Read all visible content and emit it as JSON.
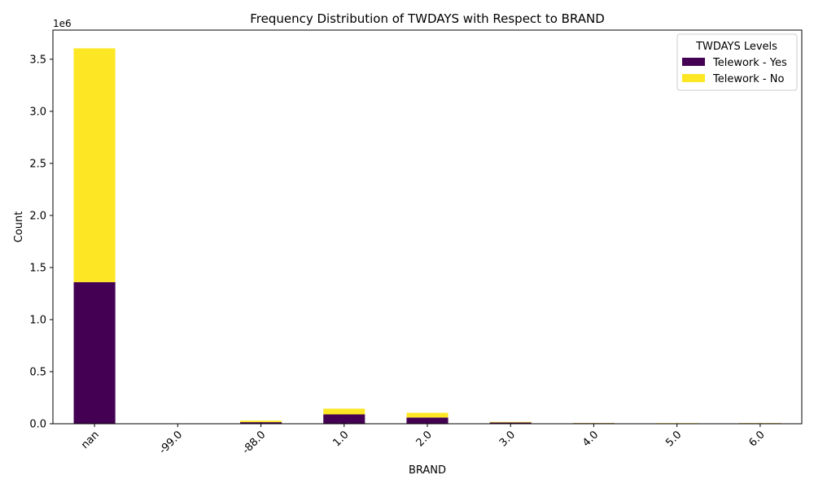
{
  "chart_data": {
    "type": "bar",
    "stacked": true,
    "title": "Frequency Distribution of TWDAYS with Respect to BRAND",
    "xlabel": "BRAND",
    "ylabel": "Count",
    "y_offset_label": "1e6",
    "y_scale": 1000000,
    "ylim": [
      0,
      3780000
    ],
    "yticks": [
      0,
      500000,
      1000000,
      1500000,
      2000000,
      2500000,
      3000000,
      3500000
    ],
    "ytick_labels": [
      "0.0",
      "0.5",
      "1.0",
      "1.5",
      "2.0",
      "2.5",
      "3.0",
      "3.5"
    ],
    "categories": [
      "nan",
      "-99.0",
      "-88.0",
      "1.0",
      "2.0",
      "3.0",
      "4.0",
      "5.0",
      "6.0"
    ],
    "series": [
      {
        "name": "Telework - Yes",
        "color": "#440154",
        "values": [
          1360000,
          300,
          15000,
          90000,
          60000,
          12000,
          6000,
          1000,
          5000
        ]
      },
      {
        "name": "Telework - No",
        "color": "#fde725",
        "values": [
          2245000,
          500,
          15000,
          55000,
          45000,
          6000,
          2000,
          5000,
          2000
        ]
      }
    ],
    "legend": {
      "title": "TWDAYS Levels",
      "position": "top-right"
    },
    "grid": false
  }
}
